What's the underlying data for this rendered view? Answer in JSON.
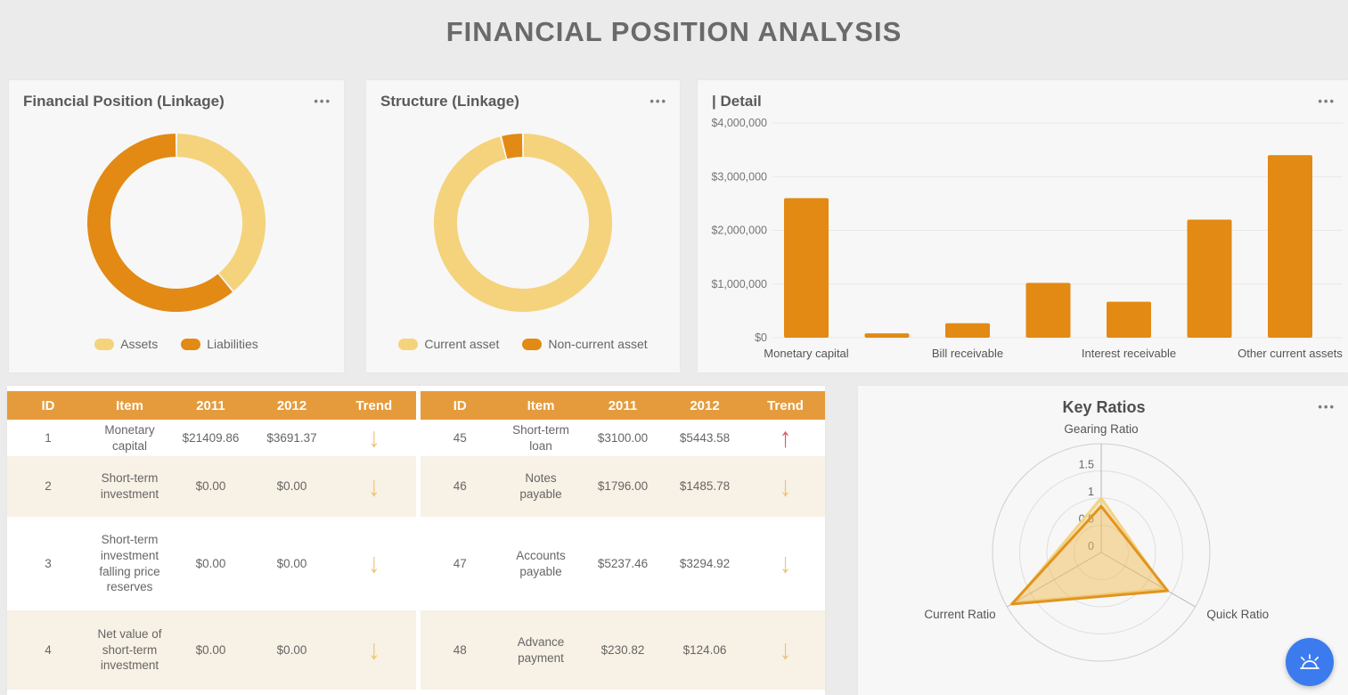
{
  "page_title": "FINANCIAL POSITION ANALYSIS",
  "ui": {
    "menu_dots": "•••"
  },
  "fab": {
    "icon": "siren-icon",
    "color": "#3C7BEE"
  },
  "chart_data": [
    {
      "type": "pie",
      "title": "Financial Position (Linkage)",
      "legend_position": "bottom",
      "segments": [
        {
          "label": "Assets",
          "percent": 39,
          "color": "#F4D37C"
        },
        {
          "label": "Liabilities",
          "percent": 61,
          "color": "#E28A14"
        }
      ]
    },
    {
      "type": "pie",
      "title": "Structure (Linkage)",
      "legend_position": "bottom",
      "segments": [
        {
          "label": "Current asset",
          "percent": 96,
          "color": "#F4D37C"
        },
        {
          "label": "Non-current asset",
          "percent": 4,
          "color": "#E28A14"
        }
      ]
    },
    {
      "type": "bar",
      "title": "| Detail",
      "categories": [
        "Monetary capital",
        "",
        "Bill receivable",
        "",
        "Interest receivable",
        "",
        "Other current assets"
      ],
      "values": [
        2600000,
        80000,
        270000,
        1020000,
        670000,
        2200000,
        3400000
      ],
      "yticks": [
        "$0",
        "$1,000,000",
        "$2,000,000",
        "$3,000,000",
        "$4,000,000"
      ],
      "ylim": [
        0,
        4000000
      ],
      "grid": true,
      "bar_color": "#E28A14"
    },
    {
      "type": "radar",
      "title": "Key Ratios",
      "axes": [
        "Gearing Ratio",
        "Quick Ratio",
        "Current Ratio"
      ],
      "tick_labels": [
        "0",
        "0.5",
        "1",
        "1.5"
      ],
      "max": 2,
      "series": [
        {
          "name": "light",
          "color": "#F2D488",
          "fill": "rgba(243,211,124,0.45)",
          "values": [
            1.0,
            1.35,
            1.85
          ]
        },
        {
          "name": "dark",
          "color": "#E2941D",
          "fill": "rgba(226,148,29,0.15)",
          "values": [
            0.85,
            1.41,
            1.9
          ]
        }
      ]
    }
  ],
  "table": {
    "headers": [
      "ID",
      "Item",
      "2011",
      "2012",
      "Trend",
      "ID",
      "Item",
      "2011",
      "2012",
      "Trend"
    ],
    "rows": [
      {
        "l_id": "1",
        "l_item": "Monetary capital",
        "l_2011": "$21409.86",
        "l_2012": "$3691.37",
        "l_trend": "↓",
        "l_trend_color": "#EFC472",
        "r_id": "45",
        "r_item": "Short-term loan",
        "r_2011": "$3100.00",
        "r_2012": "$5443.58",
        "r_trend": "↑",
        "r_trend_color": "#DD575D"
      },
      {
        "l_id": "2",
        "l_item": "Short-term investment",
        "l_2011": "$0.00",
        "l_2012": "$0.00",
        "l_trend": "↓",
        "l_trend_color": "#EFC472",
        "r_id": "46",
        "r_item": "Notes payable",
        "r_2011": "$1796.00",
        "r_2012": "$1485.78",
        "r_trend": "↓",
        "r_trend_color": "#EFC472"
      },
      {
        "l_id": "3",
        "l_item": "Short-term investment falling price reserves",
        "l_2011": "$0.00",
        "l_2012": "$0.00",
        "l_trend": "↓",
        "l_trend_color": "#EFC472",
        "r_id": "47",
        "r_item": "Accounts payable",
        "r_2011": "$5237.46",
        "r_2012": "$3294.92",
        "r_trend": "↓",
        "r_trend_color": "#EFC472"
      },
      {
        "l_id": "4",
        "l_item": "Net value of short-term investment",
        "l_2011": "$0.00",
        "l_2012": "$0.00",
        "l_trend": "↓",
        "l_trend_color": "#EFC472",
        "r_id": "48",
        "r_item": "Advance payment",
        "r_2011": "$230.82",
        "r_2012": "$124.06",
        "r_trend": "↓",
        "r_trend_color": "#EFC472"
      }
    ]
  }
}
